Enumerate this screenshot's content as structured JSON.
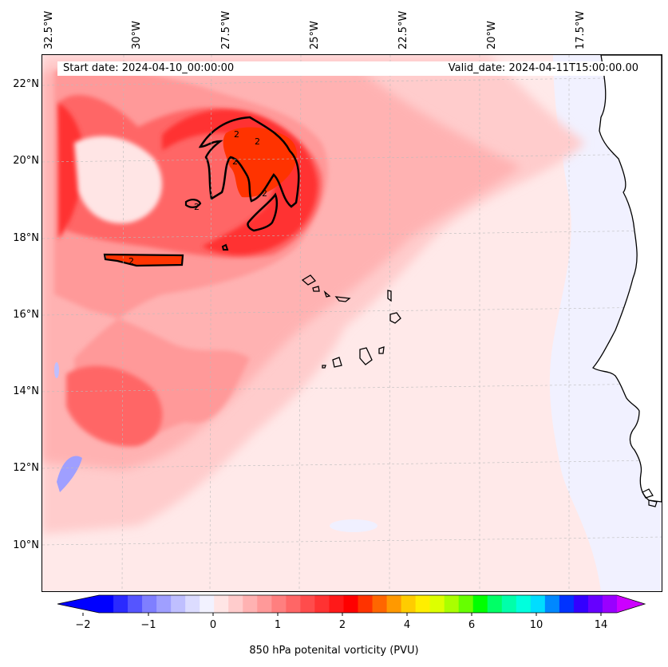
{
  "header": {
    "start_date": "Start date: 2024-04-10_00:00:00",
    "valid_date": "Valid_date: 2024-04-11T15:00:00.00"
  },
  "longitude_labels": [
    "32.5°W",
    "30°W",
    "27.5°W",
    "25°W",
    "22.5°W",
    "20°W",
    "17.5°W"
  ],
  "latitude_labels": [
    "22°N",
    "20°N",
    "18°N",
    "16°N",
    "14°N",
    "12°N",
    "10°N"
  ],
  "contour_labels": [
    "2",
    "2",
    "2",
    "2",
    "2",
    "2"
  ],
  "colorbar": {
    "label": "850 hPa potenital vorticity (PVU)",
    "tick_labels": [
      "−2",
      "−1",
      "0",
      "1",
      "2",
      "4",
      "6",
      "10",
      "14"
    ],
    "colors": [
      "#0000ff",
      "#2a2aff",
      "#5555ff",
      "#7f7fff",
      "#9f9fff",
      "#bfbfff",
      "#dcdcff",
      "#f2f2ff",
      "#ffe5e5",
      "#ffcccc",
      "#ffb2b2",
      "#ff9999",
      "#ff7f7f",
      "#ff6666",
      "#ff4c4c",
      "#ff3232",
      "#ff1919",
      "#ff0000",
      "#ff3300",
      "#ff6600",
      "#ff9900",
      "#ffcc00",
      "#ffee00",
      "#ddff00",
      "#aaff00",
      "#66ff00",
      "#00ff00",
      "#00ff66",
      "#00ffaa",
      "#00ffdd",
      "#00ddff",
      "#0088ff",
      "#0033ff",
      "#3300ff",
      "#6600ff",
      "#9900ff"
    ],
    "extend_low_color": "#0000ff",
    "extend_high_color": "#cc00ff"
  },
  "style": {
    "background_pv_color": "#ffe9e9",
    "coast_color": "#000000",
    "contour_color": "#000000"
  }
}
